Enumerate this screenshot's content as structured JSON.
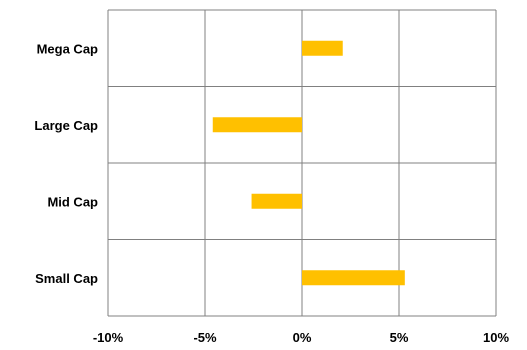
{
  "chart_data": {
    "type": "bar",
    "orientation": "horizontal",
    "categories": [
      "Mega Cap",
      "Large Cap",
      "Mid Cap",
      "Small Cap"
    ],
    "values": [
      2.1,
      -4.6,
      -2.6,
      5.3
    ],
    "xlim": [
      -10,
      10
    ],
    "xticks": [
      -10,
      -5,
      0,
      5,
      10
    ],
    "xtick_labels": [
      "-10%",
      "-5%",
      "0%",
      "5%",
      "10%"
    ],
    "bar_color": "#FFC000",
    "grid": true,
    "legend": "none"
  }
}
